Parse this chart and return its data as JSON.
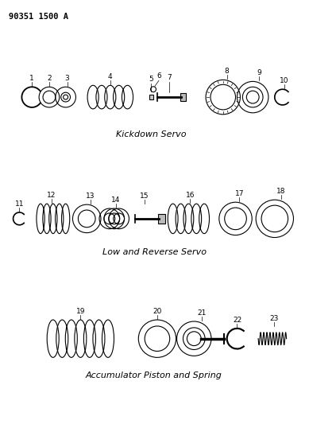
{
  "title_text": "90351 1500 A",
  "bg_color": "#ffffff",
  "line_color": "#000000",
  "section1_label": "Kickdown Servo",
  "section2_label": "Low and Reverse Servo",
  "section3_label": "Accumulator Piston and Spring",
  "figsize": [
    3.89,
    5.33
  ],
  "dpi": 100
}
